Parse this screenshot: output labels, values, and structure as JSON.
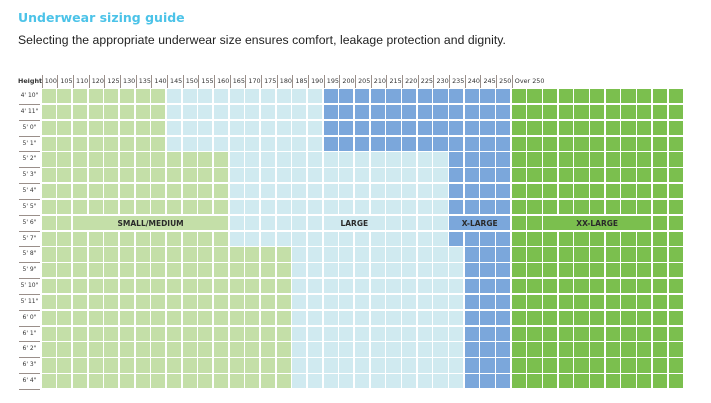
{
  "title": "Underwear sizing guide",
  "subtitle": "Selecting the appropriate underwear size ensures comfort, leakage protection and dignity.",
  "chart_data": {
    "type": "heatmap",
    "corner_label": "Height",
    "weight_columns": [
      "100",
      "105",
      "110",
      "120",
      "125",
      "130",
      "135",
      "140",
      "145",
      "150",
      "155",
      "160",
      "165",
      "170",
      "175",
      "180",
      "185",
      "190",
      "195",
      "200",
      "205",
      "210",
      "215",
      "220",
      "225",
      "230",
      "235",
      "240",
      "245",
      "250"
    ],
    "over_label": "Over 250",
    "heights": [
      "4' 10\"",
      "4' 11\"",
      "5' 0\"",
      "5' 1\"",
      "5' 2\"",
      "5' 3\"",
      "5' 4\"",
      "5' 5\"",
      "5' 6\"",
      "5' 7\"",
      "5' 8\"",
      "5' 9\"",
      "5' 10\"",
      "5' 11\"",
      "6' 0\"",
      "6' 1\"",
      "6' 2\"",
      "6' 3\"",
      "6' 4\""
    ],
    "sizes": [
      {
        "name": "SMALL/MEDIUM",
        "color": "#c4dfa8"
      },
      {
        "name": "LARGE",
        "color": "#d0eaf0"
      },
      {
        "name": "X-LARGE",
        "color": "#7ba7db"
      },
      {
        "name": "XX-LARGE",
        "color": "#7bbf4e"
      }
    ],
    "bands": [
      {
        "heights": [
          "4' 10\"",
          "5' 1\""
        ],
        "small_medium_max": "140",
        "large_max": "190",
        "x_large_max": "250",
        "xx_large": "Over 250"
      },
      {
        "heights": [
          "5' 2\"",
          "5' 7\""
        ],
        "small_medium_max": "160",
        "large_max": "230",
        "x_large_max": "250",
        "xx_large": "Over 250"
      },
      {
        "heights": [
          "5' 8\"",
          "6' 4\""
        ],
        "small_medium_max": "180",
        "large_max": "235",
        "x_large_max": "250",
        "xx_large": "Over 250"
      }
    ]
  }
}
